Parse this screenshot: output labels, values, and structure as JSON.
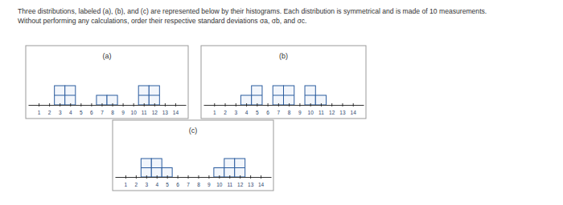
{
  "header": {
    "text": [
      "Three distributions, labeled (a), (b), and (c) are represented below by their histograms. Each distribution is symmetrical and is made of 10 measurements.",
      "Without performing any calculations, order their respective standard deviations σa, σb, and σc."
    ]
  },
  "chart_data": [
    {
      "type": "histogram",
      "title": "(a)",
      "color": "#2b5c9e",
      "bins": [
        0.5,
        1.5,
        2.5,
        3.5,
        4.5,
        5.5,
        6.5,
        7.5,
        8.5,
        9.5,
        10.5,
        11.5,
        12.5,
        13.5,
        14.5
      ],
      "values": [
        0,
        0,
        2,
        2,
        0,
        0,
        1,
        1,
        0,
        0,
        2,
        2,
        0,
        0
      ],
      "xlim": [
        0,
        15
      ],
      "xticks": [
        1,
        2,
        3,
        4,
        5,
        6,
        7,
        8,
        9,
        10,
        11,
        12,
        13,
        14
      ],
      "ylim": [
        0,
        6
      ],
      "tick_labels": "x"
    },
    {
      "type": "histogram",
      "title": "(b)",
      "color": "#2b5c9e",
      "bins": [
        0.5,
        1.5,
        2.5,
        3.5,
        4.5,
        5.5,
        6.5,
        7.5,
        8.5,
        9.5,
        10.5,
        11.5,
        12.5,
        13.5,
        14.5
      ],
      "values": [
        0,
        0,
        0,
        1,
        2,
        0,
        2,
        2,
        0,
        2,
        1,
        0,
        0,
        0
      ],
      "xlim": [
        0,
        15
      ],
      "xticks": [
        1,
        2,
        3,
        4,
        5,
        6,
        7,
        8,
        9,
        10,
        11,
        12,
        13,
        14
      ],
      "ylim": [
        0,
        6
      ],
      "tick_labels": "x"
    },
    {
      "type": "histogram",
      "title": "(c)",
      "color": "#2b5c9e",
      "bins": [
        0.5,
        1.5,
        2.5,
        3.5,
        4.5,
        5.5,
        6.5,
        7.5,
        8.5,
        9.5,
        10.5,
        11.5,
        12.5,
        13.5,
        14.5
      ],
      "values": [
        0,
        0,
        2,
        2,
        1,
        0,
        0,
        0,
        0,
        1,
        2,
        2,
        0,
        0
      ],
      "xlim": [
        0,
        15
      ],
      "xticks": [
        1,
        2,
        3,
        4,
        5,
        6,
        7,
        8,
        9,
        10,
        11,
        12,
        13,
        14
      ],
      "ylim": [
        0,
        6
      ],
      "tick_labels": "x"
    }
  ]
}
